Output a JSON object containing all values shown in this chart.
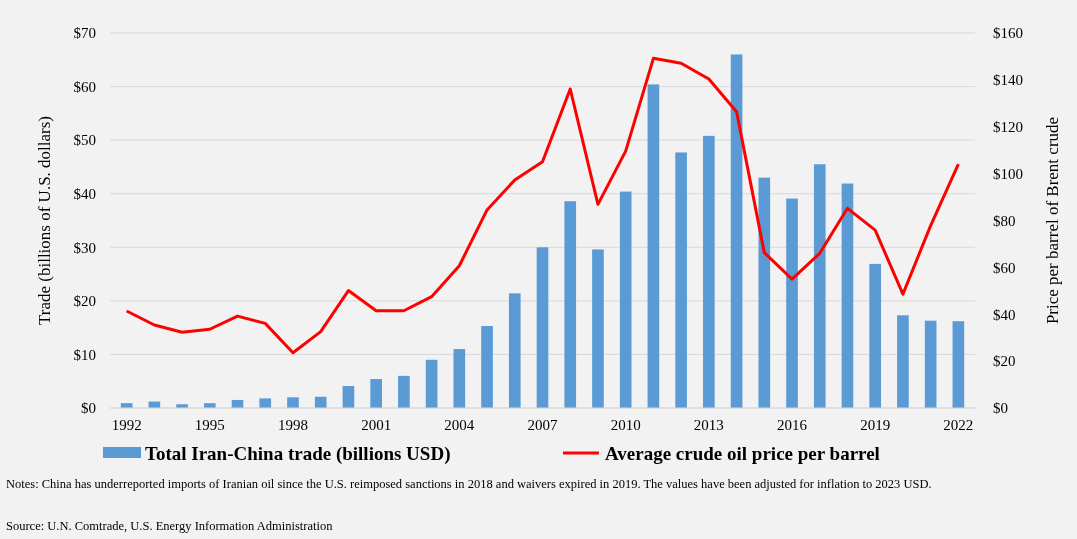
{
  "chart_data": {
    "type": "bar",
    "ylabel": "Trade (billions of U.S. dollars)",
    "y2label": "Price per barrel of Brent crude",
    "x": [
      1992,
      1993,
      1994,
      1995,
      1996,
      1997,
      1998,
      1999,
      2000,
      2001,
      2002,
      2003,
      2004,
      2005,
      2006,
      2007,
      2008,
      2009,
      2010,
      2011,
      2012,
      2013,
      2014,
      2015,
      2016,
      2017,
      2018,
      2019,
      2020,
      2021,
      2022
    ],
    "xlim": [
      1991.4,
      2022.6
    ],
    "xticks": [
      1992,
      1995,
      1998,
      2001,
      2004,
      2007,
      2010,
      2013,
      2016,
      2019,
      2022
    ],
    "series": [
      {
        "name": "Total Iran-China trade (billions USD)",
        "color": "#5b9bd5",
        "values": [
          0.9,
          1.2,
          0.7,
          0.9,
          1.5,
          1.8,
          2.0,
          2.1,
          4.1,
          5.4,
          6.0,
          9.0,
          11.0,
          15.3,
          21.4,
          30,
          38.6,
          29.6,
          40.4,
          60.4,
          47.7,
          50.8,
          66.0,
          43.0,
          39.1,
          45.5,
          41.9,
          26.9,
          17.3,
          16.3,
          16.2
        ]
      },
      {
        "name": "Average crude oil price per barrel",
        "type": "line",
        "axis": "y2",
        "color": "#ff0000",
        "values": [
          41.4,
          35.4,
          32.3,
          33.6,
          39.2,
          36.1,
          23.6,
          32.6,
          50.1,
          41.5,
          41.5,
          47.5,
          60.7,
          84.5,
          97.3,
          105.1,
          136.1,
          86.9,
          109.6,
          149.2,
          147.1,
          140.4,
          126.4,
          66.3,
          55.0,
          66.0,
          85.2,
          75.9,
          48.6,
          77.8,
          104.1
        ]
      }
    ],
    "ylim": [
      0,
      70
    ],
    "yticks": [
      {
        "value": 0,
        "label": "$0"
      },
      {
        "value": 10,
        "label": "$10"
      },
      {
        "value": 20,
        "label": "$20"
      },
      {
        "value": 30,
        "label": "$30"
      },
      {
        "value": 40,
        "label": "$40"
      },
      {
        "value": 50,
        "label": "$50"
      },
      {
        "value": 60,
        "label": "$60"
      },
      {
        "value": 70,
        "label": "$70"
      }
    ],
    "y2lim": [
      0,
      160
    ],
    "y2ticks": [
      {
        "value": 0,
        "label": "$0"
      },
      {
        "value": 20,
        "label": "$20"
      },
      {
        "value": 40,
        "label": "$40"
      },
      {
        "value": 60,
        "label": "$60"
      },
      {
        "value": 80,
        "label": "$80"
      },
      {
        "value": 100,
        "label": "$100"
      },
      {
        "value": 120,
        "label": "$120"
      },
      {
        "value": 140,
        "label": "$140"
      },
      {
        "value": 160,
        "label": "$160"
      }
    ],
    "grid": "y",
    "legend": "bottom",
    "marker": "none",
    "line_style": "solid",
    "annotations": [
      "Notes: China has underreported imports of Iranian oil since the U.S. reimposed sanctions in 2018 and waivers expired in 2019. The values have been adjusted for inflation to 2023 USD.",
      "Source: U.N. Comtrade, U.S. Energy Information Administration"
    ]
  }
}
